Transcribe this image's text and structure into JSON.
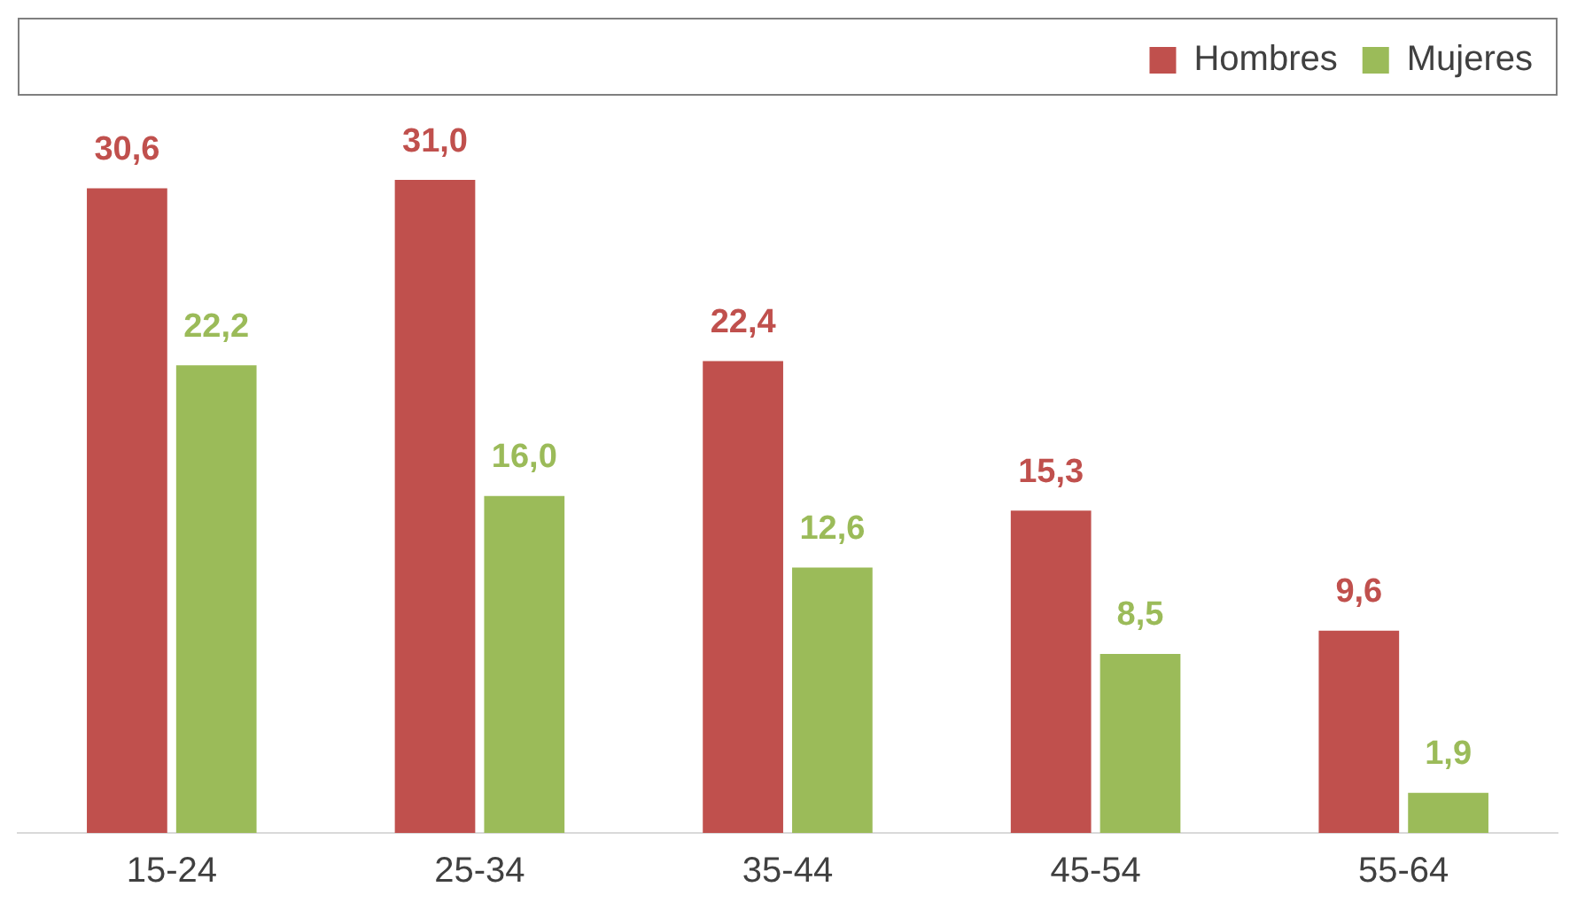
{
  "chart_data": {
    "type": "bar",
    "categories": [
      "15-24",
      "25-34",
      "35-44",
      "45-54",
      "55-64"
    ],
    "series": [
      {
        "name": "Hombres",
        "color": "#c0504d",
        "values": [
          30.6,
          31.0,
          22.4,
          15.3,
          9.6
        ],
        "value_labels": [
          "30,6",
          "31,0",
          "22,4",
          "15,3",
          "9,6"
        ]
      },
      {
        "name": "Mujeres",
        "color": "#9bbb59",
        "values": [
          22.2,
          16.0,
          12.6,
          8.5,
          1.9
        ],
        "value_labels": [
          "22,2",
          "16,0",
          "12,6",
          "8,5",
          "1,9"
        ]
      }
    ],
    "legend": "top right",
    "grid": false
  }
}
